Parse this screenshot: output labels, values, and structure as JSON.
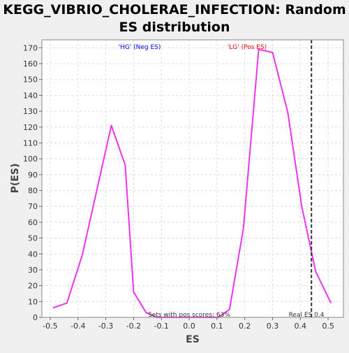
{
  "chart_data": {
    "type": "line",
    "title": "KEGG_VIBRIO_CHOLERAE_INFECTION: Random ES distribution",
    "title_lines": [
      "KEGG_VIBRIO_CHOLERAE_INFECTION: Random",
      "ES distribution"
    ],
    "xlabel": "ES",
    "ylabel": "P(ES)",
    "xlim": [
      -0.53,
      0.555
    ],
    "ylim": [
      0,
      175
    ],
    "x_ticks": [
      -0.5,
      -0.4,
      -0.3,
      -0.2,
      -0.1,
      0.0,
      0.1,
      0.2,
      0.3,
      0.4,
      0.5
    ],
    "x_tick_labels": [
      "-0.5",
      "-0.4",
      "-0.3",
      "-0.2",
      "-0.1",
      "0.0",
      "0.1",
      "0.2",
      "0.3",
      "0.4",
      "0.5"
    ],
    "y_ticks": [
      0,
      10,
      20,
      30,
      40,
      50,
      60,
      70,
      80,
      90,
      100,
      110,
      120,
      130,
      140,
      150,
      160,
      170
    ],
    "y_tick_labels": [
      "0",
      "10",
      "20",
      "30",
      "40",
      "50",
      "60",
      "70",
      "80",
      "90",
      "100",
      "110",
      "120",
      "130",
      "140",
      "150",
      "160",
      "170"
    ],
    "grid": true,
    "series": [
      {
        "color": "#ee33ee",
        "x": [
          -0.49,
          -0.44,
          -0.385,
          -0.335,
          -0.28,
          -0.23,
          -0.2,
          -0.155,
          -0.115,
          -0.06,
          0.0,
          0.06,
          0.105,
          0.145,
          0.195,
          0.25,
          0.3,
          0.355,
          0.405,
          0.455,
          0.51
        ],
        "y": [
          6,
          9,
          39,
          78,
          121,
          96,
          16,
          3,
          0,
          0,
          0,
          0,
          0,
          5,
          56,
          169,
          167,
          129,
          70,
          29,
          9
        ]
      }
    ],
    "reference_line": {
      "x": 0.44,
      "label": "Real ES 0.4",
      "style": "dashed",
      "color": "#333333"
    },
    "annotations": {
      "neg_label": "'HG' (Neg ES)",
      "neg_color": "#0000ee",
      "pos_label": "'LG' (Pos ES)",
      "pos_color": "#ee0000",
      "pos_scores": "Sets with pos scores: 63%"
    }
  }
}
